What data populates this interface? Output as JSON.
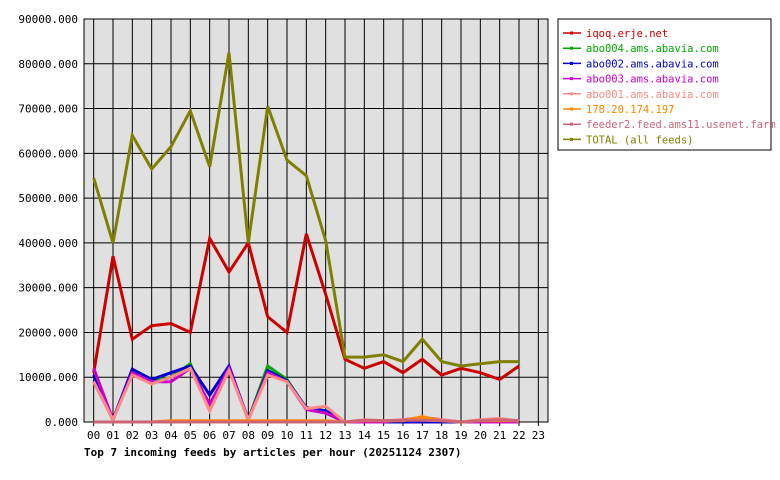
{
  "chart_data": {
    "type": "line",
    "caption": "Top 7 incoming feeds by articles per hour (20251124 2307)",
    "categories": [
      "00",
      "01",
      "02",
      "03",
      "04",
      "05",
      "06",
      "07",
      "08",
      "09",
      "10",
      "11",
      "12",
      "13",
      "14",
      "15",
      "16",
      "17",
      "18",
      "19",
      "20",
      "21",
      "22",
      "23"
    ],
    "y_tick_labels": [
      "0.000",
      "10000.000",
      "20000.000",
      "30000.000",
      "40000.000",
      "50000.000",
      "60000.000",
      "70000.000",
      "80000.000",
      "90000.000"
    ],
    "ylim": [
      0,
      90000
    ],
    "grid": true,
    "legend_position": "top-right",
    "background": "#e0e0e0",
    "series": [
      {
        "name": "iqoq.erje.net",
        "color": "#cc0000",
        "values": [
          11000,
          37000,
          18500,
          21500,
          22000,
          20000,
          41000,
          33500,
          40000,
          23500,
          20000,
          42000,
          28500,
          14000,
          12000,
          13500,
          11000,
          14000,
          10500,
          12000,
          11000,
          9500,
          12500,
          null
        ]
      },
      {
        "name": "abo004.ams.abavia.com",
        "color": "#00aa00",
        "values": [
          9000,
          500,
          11500,
          9000,
          10000,
          13000,
          3000,
          12000,
          500,
          12500,
          9500,
          3000,
          2000,
          0,
          0,
          0,
          0,
          0,
          0,
          0,
          0,
          0,
          0,
          null
        ]
      },
      {
        "name": "abo002.ams.abavia.com",
        "color": "#0000cc",
        "values": [
          10500,
          500,
          11800,
          9500,
          11000,
          12500,
          6000,
          12500,
          500,
          11500,
          9200,
          3200,
          2500,
          0,
          0,
          0,
          0,
          0,
          0,
          0,
          0,
          0,
          0,
          null
        ]
      },
      {
        "name": "abo003.ams.abavia.com",
        "color": "#cc00cc",
        "values": [
          12000,
          500,
          11000,
          9000,
          9000,
          12000,
          4000,
          12000,
          500,
          11000,
          9000,
          2800,
          2000,
          0,
          0,
          0,
          500,
          1000,
          500,
          0,
          0,
          0,
          0,
          null
        ]
      },
      {
        "name": "abo001.ams.abavia.com",
        "color": "#ff8888",
        "values": [
          9000,
          500,
          10500,
          8500,
          10000,
          12000,
          2500,
          11500,
          500,
          10500,
          9000,
          3000,
          3500,
          0,
          500,
          300,
          500,
          800,
          500,
          0,
          500,
          800,
          200,
          null
        ]
      },
      {
        "name": "178.20.174.197",
        "color": "#ff8800",
        "values": [
          0,
          0,
          0,
          0,
          300,
          300,
          300,
          300,
          300,
          300,
          300,
          300,
          300,
          0,
          300,
          300,
          300,
          1200,
          300,
          0,
          300,
          300,
          300,
          null
        ]
      },
      {
        "name": "feeder2.feed.ams11.usenet.farm",
        "color": "#cc6677",
        "values": [
          0,
          0,
          0,
          0,
          0,
          0,
          0,
          0,
          0,
          0,
          0,
          0,
          0,
          0,
          400,
          300,
          400,
          400,
          300,
          0,
          300,
          500,
          300,
          null
        ]
      },
      {
        "name": "TOTAL (all feeds)",
        "color": "#808000",
        "values": [
          54500,
          40000,
          64000,
          56500,
          61500,
          69500,
          57000,
          82500,
          40000,
          70500,
          58500,
          55000,
          40500,
          14500,
          14500,
          15000,
          13500,
          18500,
          13500,
          12500,
          13000,
          13500,
          13500,
          null
        ]
      }
    ]
  }
}
